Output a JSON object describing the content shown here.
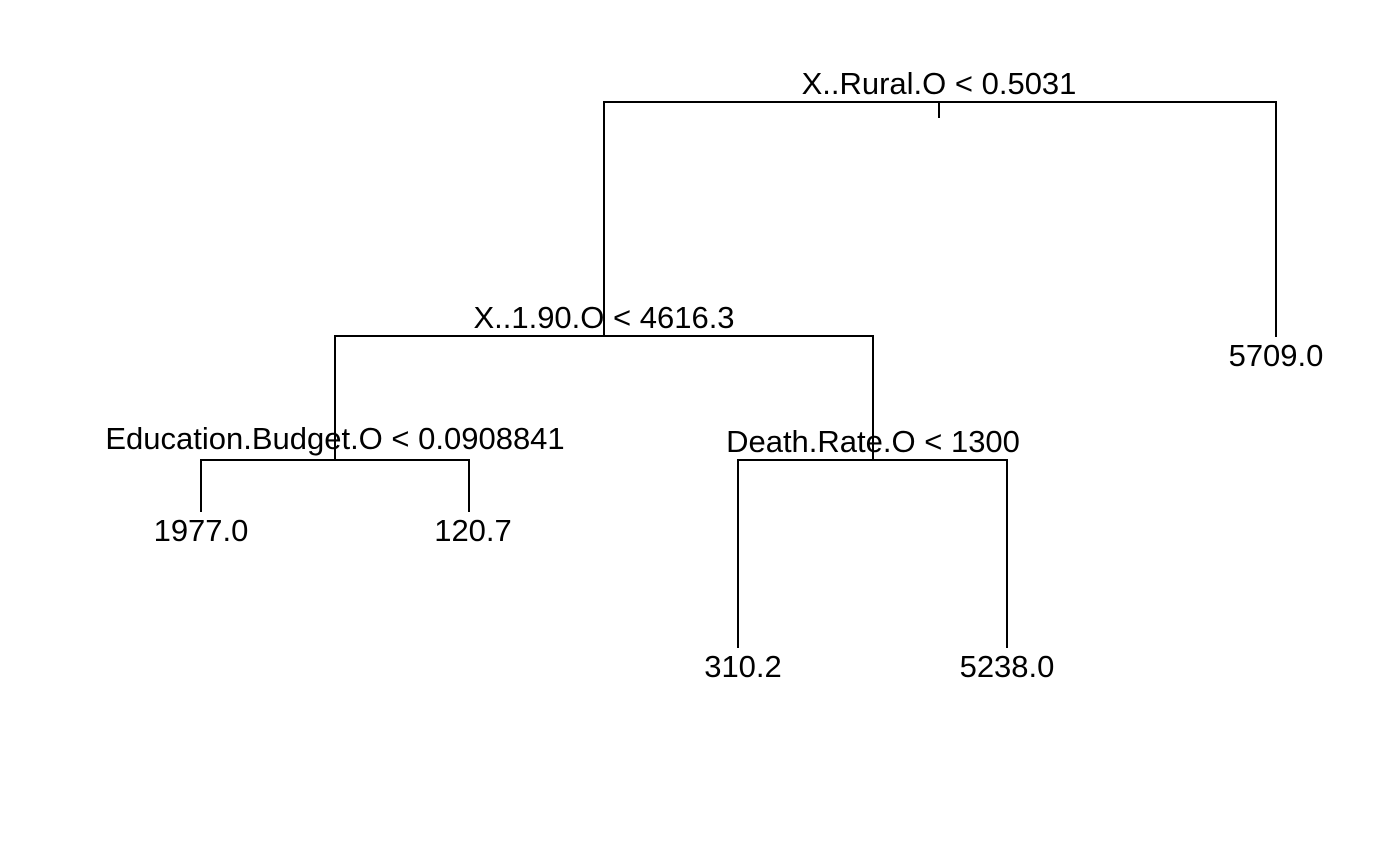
{
  "tree": {
    "split_labels": [
      "X..Rural.O < 0.5031",
      "X..1.90.O < 4616.3",
      "Education.Budget.O < 0.0908841",
      "Death.Rate.O < 1300"
    ],
    "leaf_labels": [
      "1977.0",
      "120.7",
      "310.2",
      "5238.0",
      "5709.0"
    ]
  }
}
